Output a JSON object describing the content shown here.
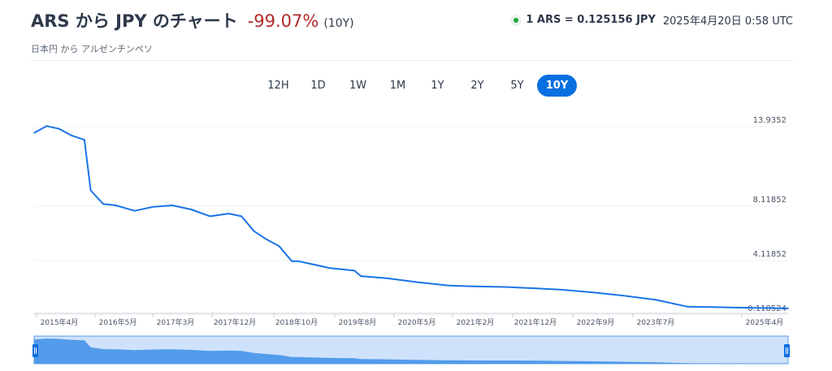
{
  "header": {
    "title": "ARS から JPY のチャート",
    "change": "-99.07%",
    "period_label": "(10Y)",
    "subtitle": "日本円 から アルゼンチンペソ",
    "rate": "1 ARS = 0.125156 JPY",
    "timestamp": "2025年4月20日 0:58 UTC"
  },
  "tabs": [
    {
      "label": "12H",
      "active": false
    },
    {
      "label": "1D",
      "active": false
    },
    {
      "label": "1W",
      "active": false
    },
    {
      "label": "1M",
      "active": false
    },
    {
      "label": "1Y",
      "active": false
    },
    {
      "label": "2Y",
      "active": false
    },
    {
      "label": "5Y",
      "active": false
    },
    {
      "label": "10Y",
      "active": true
    }
  ],
  "colors": {
    "line": "#1a73e8",
    "navigator_fill": "#3d8fe8",
    "navigator_bg": "#cfe2fb",
    "negative": "#b12a2a",
    "accent": "#0a6fe0"
  },
  "chart_data": {
    "type": "line",
    "title": "",
    "xlabel": "",
    "ylabel": "",
    "x_tick_labels": [
      "2015年4月",
      "2016年5月",
      "2017年3月",
      "2017年12月",
      "2018年10月",
      "2019年8月",
      "2020年5月",
      "2021年2月",
      "2021年12月",
      "2022年9月",
      "2023年7月",
      "2025年4月"
    ],
    "y_tick_labels": [
      "13.9352",
      "8.11852",
      "4.11852",
      "0.118524"
    ],
    "ylim": [
      0.118524,
      13.9352
    ],
    "grid": true,
    "legend": "none",
    "series": [
      {
        "x": [
          "2015-04",
          "2015-06",
          "2015-08",
          "2015-10",
          "2015-12",
          "2016-01",
          "2016-03",
          "2016-05",
          "2016-08",
          "2016-11",
          "2017-02",
          "2017-05",
          "2017-08",
          "2017-11",
          "2018-01",
          "2018-03",
          "2018-05",
          "2018-07",
          "2018-09",
          "2018-10",
          "2018-12",
          "2019-03",
          "2019-05",
          "2019-07",
          "2019-08",
          "2019-12",
          "2020-05",
          "2020-10",
          "2021-02",
          "2021-07",
          "2021-12",
          "2022-04",
          "2022-09",
          "2023-02",
          "2023-07",
          "2023-12",
          "2024-06",
          "2025-04"
        ],
        "y": [
          13.0,
          13.5,
          13.3,
          12.8,
          12.5,
          8.8,
          7.8,
          7.7,
          7.3,
          7.6,
          7.7,
          7.4,
          6.9,
          7.1,
          6.9,
          5.8,
          5.2,
          4.7,
          3.6,
          3.6,
          3.4,
          3.1,
          3.0,
          2.9,
          2.5,
          2.35,
          2.05,
          1.8,
          1.75,
          1.7,
          1.6,
          1.5,
          1.3,
          1.05,
          0.75,
          0.25,
          0.2,
          0.125
        ]
      }
    ]
  }
}
